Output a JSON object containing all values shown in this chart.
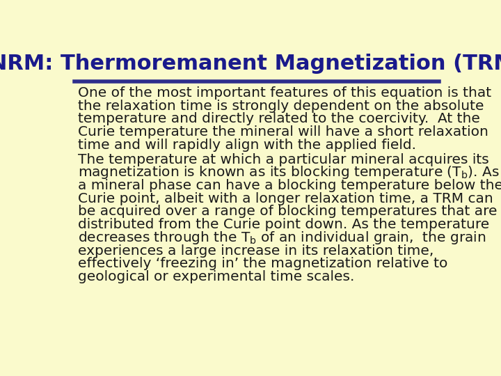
{
  "title": "NRM: Thermoremanent Magnetization (TRM)",
  "title_color": "#1a1a8c",
  "title_fontsize": 22,
  "background_color": "#fafacc",
  "divider_color": "#2e2e8c",
  "body_text_color": "#1a1a1a",
  "body_fontsize": 14.5,
  "line1": "One of the most important features of this equation is that",
  "line2": "the relaxation time is strongly dependent on the absolute",
  "line3": "temperature and directly related to the coercivity.  At the",
  "line4": "Curie temperature the mineral will have a short relaxation",
  "line5": "time and will rapidly align with the applied field.",
  "line6": "The temperature at which a particular mineral acquires its",
  "line7_a": "magnetization is known as its blocking temperature (T",
  "line7_b": "b",
  "line7_c": "). As",
  "line8": "a mineral phase can have a blocking temperature below the",
  "line9": "Curie point, albeit with a longer relaxation time, a TRM can",
  "line10": "be acquired over a range of blocking temperatures that are",
  "line11": "distributed from the Curie point down. As the temperature",
  "line12_a": "decreases through the T",
  "line12_b": "b",
  "line12_c": " of an individual grain,  the grain",
  "line13": "experiences a large increase in its relaxation time,",
  "line14": "effectively ‘freezing in’ the magnetization relative to",
  "line15": "geological or experimental time scales."
}
